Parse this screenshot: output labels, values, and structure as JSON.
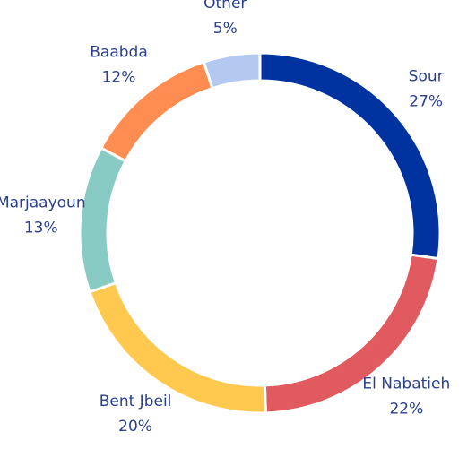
{
  "chart_data": {
    "type": "donut",
    "categories": [
      "Sour",
      "El Nabatieh",
      "Bent Jbeil",
      "Marjaayoun",
      "Baabda",
      "Other"
    ],
    "values": [
      27,
      22,
      20,
      13,
      12,
      5
    ],
    "value_labels": [
      "27%",
      "22%",
      "20%",
      "13%",
      "12%",
      "5%"
    ],
    "colors": [
      "#0033a0",
      "#e05a5f",
      "#ffc94f",
      "#88cbc4",
      "#ff8c50",
      "#b3c9f0"
    ]
  }
}
